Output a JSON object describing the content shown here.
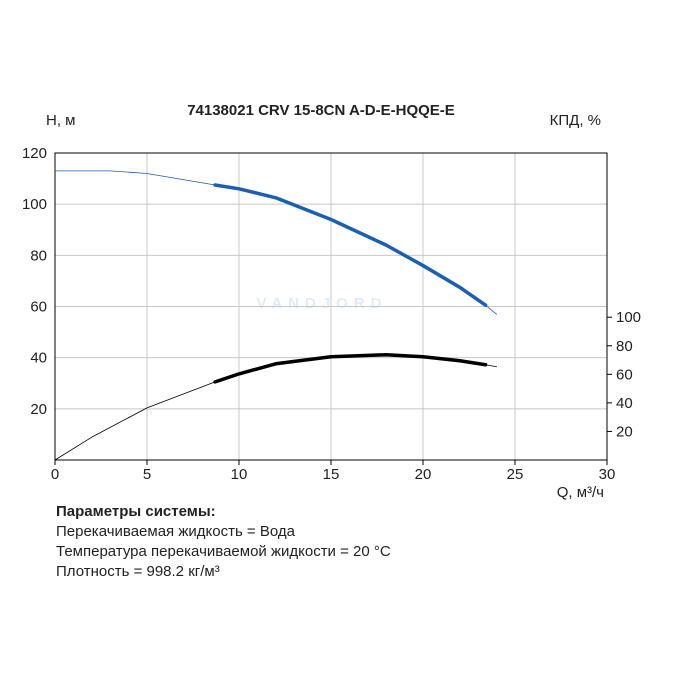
{
  "chart_data": {
    "type": "line",
    "title": "74138021 CRV 15-8CN A-D-E-HQQE-E",
    "y_label": "H, м",
    "y2_label": "КПД, %",
    "x_label": "Q, м³/ч",
    "watermark": "VANDJORD",
    "xlim": [
      0,
      30
    ],
    "xticks": [
      0,
      5,
      10,
      15,
      20,
      25,
      30
    ],
    "ylim": [
      0,
      120
    ],
    "yticks": [
      20,
      40,
      60,
      80,
      100,
      120
    ],
    "y2lim": [
      0,
      215
    ],
    "y2ticks": [
      20,
      40,
      60,
      80,
      100
    ],
    "grid": true,
    "series": [
      {
        "color": "#1a5fb4",
        "width": 0.8,
        "x": [
          0,
          3,
          5,
          8.7,
          10,
          12,
          15,
          18,
          20,
          22,
          23.4,
          24
        ],
        "values": [
          113,
          113,
          112,
          107.5,
          106,
          102.5,
          94,
          84,
          76,
          67.5,
          60.5,
          57
        ]
      },
      {
        "color": "#1a5fb4",
        "width": 3.5,
        "x": [
          8.7,
          10,
          12,
          15,
          18,
          20,
          22,
          23.4
        ],
        "values": [
          107.5,
          106,
          102.5,
          94,
          84,
          76,
          67.5,
          60.5
        ]
      },
      {
        "color": "#000000",
        "width": 0.8,
        "axis": "y2",
        "x": [
          0,
          2,
          5,
          8.7,
          10,
          12,
          15,
          18,
          20,
          22,
          23.4,
          24
        ],
        "values": [
          0,
          16,
          36.5,
          54.7,
          60.3,
          67.4,
          72.3,
          73.7,
          72.3,
          69.5,
          66.7,
          65.3
        ]
      },
      {
        "color": "#000000",
        "width": 3.5,
        "axis": "y2",
        "x": [
          8.7,
          10,
          12,
          15,
          18,
          20,
          22,
          23.4
        ],
        "values": [
          54.7,
          60.3,
          67.4,
          72.3,
          73.7,
          72.3,
          69.5,
          66.7
        ]
      }
    ]
  },
  "parameters": {
    "heading": "Параметры системы:",
    "lines": [
      "Перекачиваемая жидкость = Вода",
      "Температура перекачиваемой жидкости = 20 °C",
      "Плотность = 998.2 кг/м³"
    ]
  }
}
